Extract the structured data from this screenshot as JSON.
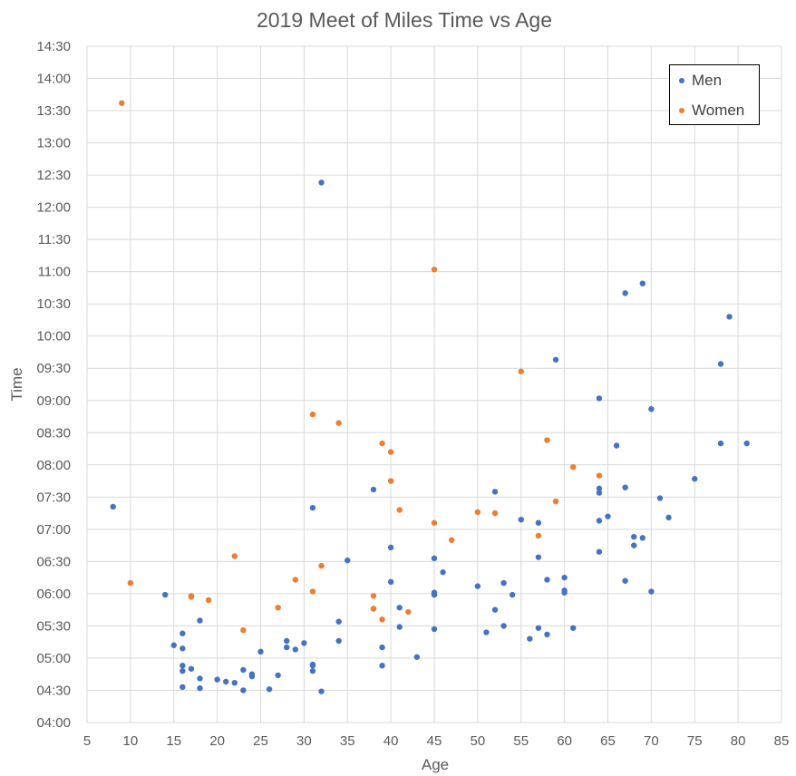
{
  "chart_data": {
    "type": "scatter",
    "title": "2019 Meet of Miles Time vs Age",
    "xlabel": "Age",
    "ylabel": "Time",
    "xlim": [
      5,
      85
    ],
    "x_ticks": [
      5,
      10,
      15,
      20,
      25,
      30,
      35,
      40,
      45,
      50,
      55,
      60,
      65,
      70,
      75,
      80,
      85
    ],
    "ylim": [
      "04:00",
      "14:30"
    ],
    "y_ticks": [
      "04:00",
      "04:30",
      "05:00",
      "05:30",
      "06:00",
      "06:30",
      "07:00",
      "07:30",
      "08:00",
      "08:30",
      "09:00",
      "09:30",
      "10:00",
      "10:30",
      "11:00",
      "11:30",
      "12:00",
      "12:30",
      "13:00",
      "13:30",
      "14:00",
      "14:30"
    ],
    "grid": true,
    "legend": "top-right",
    "series": [
      {
        "name": "Men",
        "color": "#4472c4",
        "points": [
          [
            8,
            "07:21"
          ],
          [
            14,
            "05:59"
          ],
          [
            15,
            "05:12"
          ],
          [
            16,
            "05:23"
          ],
          [
            16,
            "05:09"
          ],
          [
            16,
            "04:53"
          ],
          [
            16,
            "04:48"
          ],
          [
            16,
            "04:33"
          ],
          [
            17,
            "04:50"
          ],
          [
            18,
            "05:35"
          ],
          [
            18,
            "04:41"
          ],
          [
            18,
            "04:32"
          ],
          [
            20,
            "04:40"
          ],
          [
            21,
            "04:38"
          ],
          [
            22,
            "04:37"
          ],
          [
            23,
            "04:49"
          ],
          [
            23,
            "04:30"
          ],
          [
            24,
            "04:45"
          ],
          [
            24,
            "04:43"
          ],
          [
            25,
            "05:06"
          ],
          [
            26,
            "04:31"
          ],
          [
            27,
            "04:44"
          ],
          [
            28,
            "05:16"
          ],
          [
            28,
            "05:10"
          ],
          [
            29,
            "05:08"
          ],
          [
            30,
            "05:14"
          ],
          [
            31,
            "07:20"
          ],
          [
            31,
            "04:54"
          ],
          [
            31,
            "04:53"
          ],
          [
            31,
            "04:48"
          ],
          [
            32,
            "12:23"
          ],
          [
            32,
            "04:29"
          ],
          [
            34,
            "05:34"
          ],
          [
            34,
            "05:16"
          ],
          [
            35,
            "06:31"
          ],
          [
            38,
            "07:37"
          ],
          [
            38,
            "05:46"
          ],
          [
            39,
            "05:10"
          ],
          [
            39,
            "04:53"
          ],
          [
            40,
            "06:43"
          ],
          [
            40,
            "06:11"
          ],
          [
            41,
            "05:47"
          ],
          [
            41,
            "05:29"
          ],
          [
            43,
            "05:01"
          ],
          [
            45,
            "06:33"
          ],
          [
            45,
            "06:01"
          ],
          [
            45,
            "05:59"
          ],
          [
            45,
            "05:27"
          ],
          [
            46,
            "06:20"
          ],
          [
            50,
            "06:07"
          ],
          [
            51,
            "05:24"
          ],
          [
            52,
            "07:35"
          ],
          [
            52,
            "05:45"
          ],
          [
            53,
            "06:10"
          ],
          [
            53,
            "05:30"
          ],
          [
            54,
            "05:59"
          ],
          [
            55,
            "07:09"
          ],
          [
            56,
            "05:18"
          ],
          [
            57,
            "07:06"
          ],
          [
            57,
            "06:34"
          ],
          [
            57,
            "05:28"
          ],
          [
            58,
            "06:13"
          ],
          [
            58,
            "05:22"
          ],
          [
            59,
            "09:38"
          ],
          [
            60,
            "06:15"
          ],
          [
            60,
            "06:03"
          ],
          [
            60,
            "06:01"
          ],
          [
            61,
            "05:28"
          ],
          [
            64,
            "09:02"
          ],
          [
            64,
            "07:38"
          ],
          [
            64,
            "07:34"
          ],
          [
            64,
            "07:08"
          ],
          [
            64,
            "06:39"
          ],
          [
            65,
            "07:12"
          ],
          [
            66,
            "08:18"
          ],
          [
            67,
            "10:40"
          ],
          [
            67,
            "07:39"
          ],
          [
            67,
            "06:12"
          ],
          [
            68,
            "06:53"
          ],
          [
            68,
            "06:45"
          ],
          [
            69,
            "10:49"
          ],
          [
            69,
            "06:52"
          ],
          [
            70,
            "08:52"
          ],
          [
            70,
            "06:02"
          ],
          [
            71,
            "07:29"
          ],
          [
            72,
            "07:11"
          ],
          [
            75,
            "07:47"
          ],
          [
            78,
            "09:34"
          ],
          [
            78,
            "08:20"
          ],
          [
            79,
            "10:18"
          ],
          [
            81,
            "08:20"
          ]
        ]
      },
      {
        "name": "Women",
        "color": "#ed7d31",
        "points": [
          [
            9,
            "13:37"
          ],
          [
            10,
            "06:10"
          ],
          [
            17,
            "05:58"
          ],
          [
            17,
            "05:57"
          ],
          [
            19,
            "05:54"
          ],
          [
            22,
            "06:35"
          ],
          [
            23,
            "05:26"
          ],
          [
            27,
            "05:47"
          ],
          [
            29,
            "06:13"
          ],
          [
            31,
            "08:47"
          ],
          [
            31,
            "06:02"
          ],
          [
            32,
            "06:26"
          ],
          [
            34,
            "08:39"
          ],
          [
            38,
            "05:58"
          ],
          [
            38,
            "05:46"
          ],
          [
            39,
            "08:20"
          ],
          [
            39,
            "05:36"
          ],
          [
            40,
            "08:12"
          ],
          [
            40,
            "07:45"
          ],
          [
            41,
            "07:18"
          ],
          [
            42,
            "05:43"
          ],
          [
            45,
            "11:02"
          ],
          [
            45,
            "07:06"
          ],
          [
            47,
            "06:50"
          ],
          [
            50,
            "07:16"
          ],
          [
            52,
            "07:15"
          ],
          [
            55,
            "09:27"
          ],
          [
            57,
            "06:54"
          ],
          [
            58,
            "08:23"
          ],
          [
            59,
            "07:26"
          ],
          [
            61,
            "07:58"
          ],
          [
            64,
            "07:50"
          ]
        ]
      }
    ]
  }
}
